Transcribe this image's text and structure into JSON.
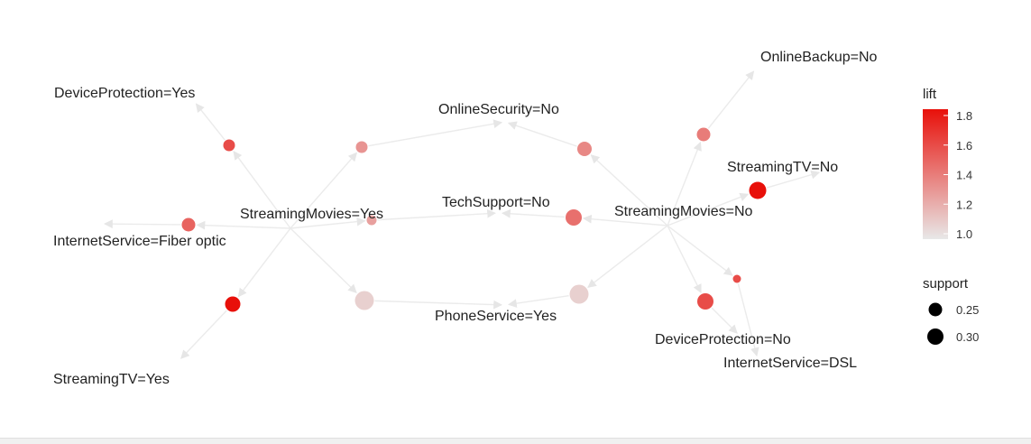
{
  "graph": {
    "items": [
      {
        "id": "dp_yes",
        "label": "DeviceProtection=Yes"
      },
      {
        "id": "os_no",
        "label": "OnlineSecurity=No"
      },
      {
        "id": "ob_no",
        "label": "OnlineBackup=No"
      },
      {
        "id": "stv_no",
        "label": "StreamingTV=No"
      },
      {
        "id": "sm_yes",
        "label": "StreamingMovies=Yes"
      },
      {
        "id": "ts_no",
        "label": "TechSupport=No"
      },
      {
        "id": "sm_no",
        "label": "StreamingMovies=No"
      },
      {
        "id": "is_fiber",
        "label": "InternetService=Fiber optic"
      },
      {
        "id": "ps_yes",
        "label": "PhoneService=Yes"
      },
      {
        "id": "dp_no",
        "label": "DeviceProtection=No"
      },
      {
        "id": "is_dsl",
        "label": "InternetService=DSL"
      },
      {
        "id": "stv_yes",
        "label": "StreamingTV=Yes"
      }
    ],
    "rules": [
      {
        "id": "r1",
        "lift": 1.6,
        "support": 0.22,
        "lhs": [
          "sm_yes"
        ],
        "rhs": "dp_yes"
      },
      {
        "id": "r2",
        "lift": 1.3,
        "support": 0.22,
        "lhs": [
          "sm_yes"
        ],
        "rhs": "os_no"
      },
      {
        "id": "r3",
        "lift": 1.5,
        "support": 0.24,
        "lhs": [
          "sm_yes"
        ],
        "rhs": "is_fiber"
      },
      {
        "id": "r4",
        "lift": 1.25,
        "support": 0.2,
        "lhs": [
          "sm_yes"
        ],
        "rhs": "ts_no"
      },
      {
        "id": "r5",
        "lift": 1.05,
        "support": 0.3,
        "lhs": [
          "sm_yes"
        ],
        "rhs": "ps_yes"
      },
      {
        "id": "r6",
        "lift": 1.85,
        "support": 0.26,
        "lhs": [
          "sm_yes"
        ],
        "rhs": "stv_yes"
      },
      {
        "id": "r7",
        "lift": 1.35,
        "support": 0.25,
        "lhs": [
          "sm_no"
        ],
        "rhs": "os_no"
      },
      {
        "id": "r8",
        "lift": 1.4,
        "support": 0.24,
        "lhs": [
          "sm_no"
        ],
        "rhs": "ob_no"
      },
      {
        "id": "r9",
        "lift": 1.85,
        "support": 0.28,
        "lhs": [
          "sm_no"
        ],
        "rhs": "stv_no"
      },
      {
        "id": "r10",
        "lift": 1.45,
        "support": 0.27,
        "lhs": [
          "sm_no"
        ],
        "rhs": "ts_no"
      },
      {
        "id": "r11",
        "lift": 1.05,
        "support": 0.3,
        "lhs": [
          "sm_no"
        ],
        "rhs": "ps_yes"
      },
      {
        "id": "r12",
        "lift": 1.6,
        "support": 0.18,
        "lhs": [
          "sm_no"
        ],
        "rhs": "is_dsl"
      },
      {
        "id": "r13",
        "lift": 1.6,
        "support": 0.27,
        "lhs": [
          "sm_no"
        ],
        "rhs": "dp_no"
      }
    ]
  },
  "legend": {
    "lift_title": "lift",
    "lift_ticks": [
      "1.8",
      "1.6",
      "1.4",
      "1.2",
      "1.0"
    ],
    "lift_range": [
      0.95,
      1.85
    ],
    "lift_colors": {
      "low": "#e8e8e8",
      "high": "#e8100a"
    },
    "support_title": "support",
    "support_ticks": [
      "0.25",
      "0.30"
    ]
  }
}
